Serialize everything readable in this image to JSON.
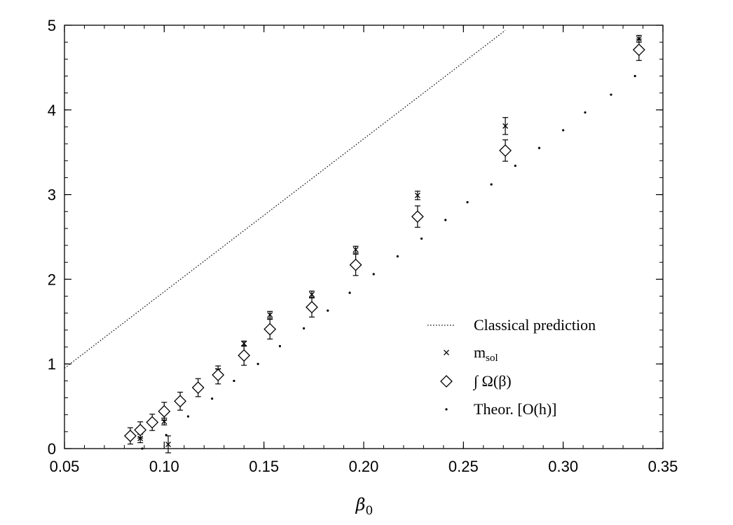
{
  "chart_data": {
    "type": "scatter",
    "xlabel": "β",
    "xlabel_sub": "0",
    "ylabel": "",
    "xlim": [
      0.05,
      0.35
    ],
    "ylim": [
      0,
      5
    ],
    "xticks": [
      "0.05",
      "0.10",
      "0.15",
      "0.20",
      "0.25",
      "0.30",
      "0.35"
    ],
    "yticks": [
      "0",
      "1",
      "2",
      "3",
      "4",
      "5"
    ],
    "grid": false,
    "legend_position": "bottom-right",
    "series": [
      {
        "name": "Classical prediction",
        "style": "dotted-line",
        "points": [
          [
            0.05,
            0.95
          ],
          [
            0.271,
            4.94
          ]
        ]
      },
      {
        "name": "m",
        "name_sub": "sol",
        "marker": "cross",
        "points": [
          {
            "x": 0.088,
            "y": 0.12,
            "err": 0.05
          },
          {
            "x": 0.1,
            "y": 0.32,
            "err": 0.04
          },
          {
            "x": 0.102,
            "y": 0.05,
            "err": 0.1
          },
          {
            "x": 0.127,
            "y": 0.92,
            "err": 0.02
          },
          {
            "x": 0.14,
            "y": 1.24,
            "err": 0.03
          },
          {
            "x": 0.153,
            "y": 1.58,
            "err": 0.04
          },
          {
            "x": 0.174,
            "y": 1.82,
            "err": 0.04
          },
          {
            "x": 0.196,
            "y": 2.35,
            "err": 0.04
          },
          {
            "x": 0.227,
            "y": 2.99,
            "err": 0.05
          },
          {
            "x": 0.271,
            "y": 3.81,
            "err": 0.1
          },
          {
            "x": 0.338,
            "y": 4.84,
            "err": 0.04
          }
        ]
      },
      {
        "name": "∫ Ω(β)",
        "marker": "diamond",
        "points": [
          {
            "x": 0.083,
            "y": 0.15,
            "err": 0.03
          },
          {
            "x": 0.088,
            "y": 0.22,
            "err": 0.03
          },
          {
            "x": 0.094,
            "y": 0.31,
            "err": 0.03
          },
          {
            "x": 0.1,
            "y": 0.44,
            "err": 0.04
          },
          {
            "x": 0.108,
            "y": 0.56,
            "err": 0.04
          },
          {
            "x": 0.117,
            "y": 0.72,
            "err": 0.04
          },
          {
            "x": 0.127,
            "y": 0.87,
            "err": 0.04
          },
          {
            "x": 0.14,
            "y": 1.1,
            "err": 0.05
          },
          {
            "x": 0.153,
            "y": 1.41,
            "err": 0.05
          },
          {
            "x": 0.174,
            "y": 1.67,
            "err": 0.05
          },
          {
            "x": 0.196,
            "y": 2.17,
            "err": 0.06
          },
          {
            "x": 0.227,
            "y": 2.74,
            "err": 0.06
          },
          {
            "x": 0.271,
            "y": 3.52,
            "err": 0.06
          },
          {
            "x": 0.338,
            "y": 4.71,
            "err": 0.06
          }
        ]
      },
      {
        "name": "Theor. [O(h)]",
        "marker": "dot",
        "points": [
          [
            0.089,
            0.0
          ],
          [
            0.101,
            0.16
          ],
          [
            0.112,
            0.38
          ],
          [
            0.124,
            0.59
          ],
          [
            0.135,
            0.8
          ],
          [
            0.147,
            1.0
          ],
          [
            0.158,
            1.21
          ],
          [
            0.17,
            1.42
          ],
          [
            0.182,
            1.63
          ],
          [
            0.193,
            1.84
          ],
          [
            0.205,
            2.06
          ],
          [
            0.217,
            2.27
          ],
          [
            0.229,
            2.48
          ],
          [
            0.241,
            2.7
          ],
          [
            0.252,
            2.91
          ],
          [
            0.264,
            3.12
          ],
          [
            0.276,
            3.34
          ],
          [
            0.288,
            3.55
          ],
          [
            0.3,
            3.76
          ],
          [
            0.311,
            3.97
          ],
          [
            0.324,
            4.18
          ],
          [
            0.336,
            4.4
          ]
        ]
      }
    ]
  }
}
